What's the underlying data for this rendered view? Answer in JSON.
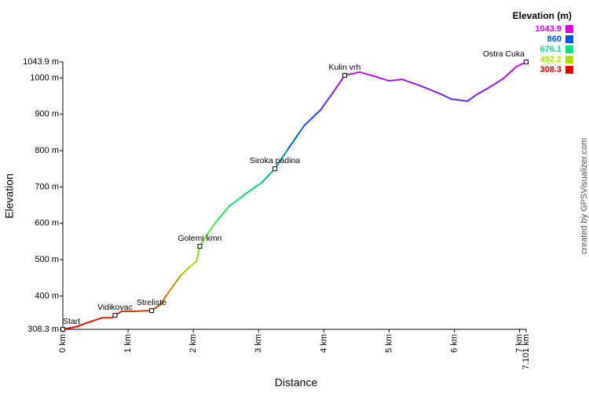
{
  "chart_data": {
    "type": "line",
    "xlabel": "Distance",
    "ylabel": "Elevation",
    "credit": "created by GPSVisualizer.com",
    "x": [
      0,
      0.2,
      0.4,
      0.6,
      0.75,
      0.8,
      0.9,
      1.1,
      1.36,
      1.5,
      1.6,
      1.8,
      1.95,
      2.05,
      2.1,
      2.2,
      2.35,
      2.55,
      2.8,
      3.05,
      3.25,
      3.45,
      3.7,
      3.95,
      4.15,
      4.32,
      4.55,
      4.8,
      5.0,
      5.2,
      5.5,
      5.8,
      5.95,
      6.2,
      6.35,
      6.5,
      6.75,
      6.95,
      7.101
    ],
    "values": [
      308.3,
      315,
      328,
      340,
      340,
      347,
      358,
      358,
      360,
      377,
      405,
      455,
      481,
      496,
      537,
      567,
      604,
      647,
      681,
      712,
      750,
      804,
      869,
      912,
      962,
      1007,
      1016,
      1003,
      992,
      996,
      977,
      955,
      942,
      936,
      955,
      970,
      998,
      1031,
      1043.9
    ],
    "xlim": [
      0,
      7.101
    ],
    "xticks": [
      {
        "value": 0,
        "label": "0 km"
      },
      {
        "value": 1,
        "label": "1 km"
      },
      {
        "value": 2,
        "label": "2 km"
      },
      {
        "value": 3,
        "label": "3 km"
      },
      {
        "value": 4,
        "label": "4 km"
      },
      {
        "value": 5,
        "label": "5 km"
      },
      {
        "value": 6,
        "label": "6 km"
      },
      {
        "value": 7,
        "label": "7 km"
      },
      {
        "value": 7.101,
        "label": "7.101 km"
      }
    ],
    "ylim": [
      308.3,
      1043.9
    ],
    "yticks": [
      {
        "value": 308.3,
        "label": "308.3 m"
      },
      {
        "value": 400,
        "label": "400 m"
      },
      {
        "value": 500,
        "label": "500 m"
      },
      {
        "value": 600,
        "label": "600 m"
      },
      {
        "value": 700,
        "label": "700 m"
      },
      {
        "value": 800,
        "label": "800 m"
      },
      {
        "value": 900,
        "label": "900 m"
      },
      {
        "value": 1000,
        "label": "1000 m"
      },
      {
        "value": 1043.9,
        "label": "1043.9 m"
      }
    ],
    "legend_title": "Elevation (m)",
    "color_scale": [
      {
        "value": 1043.9,
        "color": "#e000e0"
      },
      {
        "value": 860.0,
        "label": "860.0",
        "color": "#0050e0"
      },
      {
        "value": 676.1,
        "color": "#00e080"
      },
      {
        "value": 492.2,
        "color": "#a8e000"
      },
      {
        "value": 308.3,
        "color": "#e00000"
      }
    ],
    "waypoints": [
      {
        "name": "Start",
        "x": 0,
        "y": 308.3
      },
      {
        "name": "Vidikovac",
        "x": 0.8,
        "y": 347
      },
      {
        "name": "Streliste",
        "x": 1.36,
        "y": 360
      },
      {
        "name": "Golemi kmn",
        "x": 2.1,
        "y": 537
      },
      {
        "name": "Siroka padina",
        "x": 3.25,
        "y": 750
      },
      {
        "name": "Kulin vrh",
        "x": 4.32,
        "y": 1007
      },
      {
        "name": "Ostra Cuka",
        "x": 7.101,
        "y": 1043.9
      }
    ]
  }
}
